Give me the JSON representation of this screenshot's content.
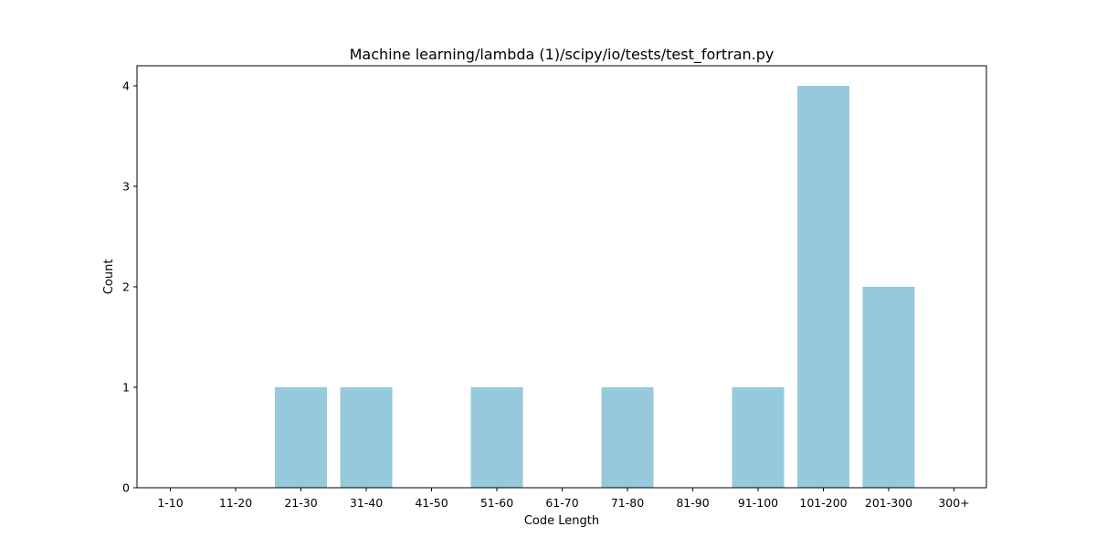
{
  "chart_data": {
    "type": "bar",
    "title": "Machine learning/lambda (1)/scipy/io/tests/test_fortran.py",
    "xlabel": "Code Length",
    "ylabel": "Count",
    "categories": [
      "1-10",
      "11-20",
      "21-30",
      "31-40",
      "41-50",
      "51-60",
      "61-70",
      "71-80",
      "81-90",
      "91-100",
      "101-200",
      "201-300",
      "300+"
    ],
    "values": [
      0,
      0,
      1,
      1,
      0,
      1,
      0,
      1,
      0,
      1,
      4,
      2,
      0
    ],
    "yticks": [
      0,
      1,
      2,
      3,
      4
    ],
    "ylim": [
      0,
      4.2
    ],
    "grid": false,
    "bar_color": "#96c9dc"
  }
}
